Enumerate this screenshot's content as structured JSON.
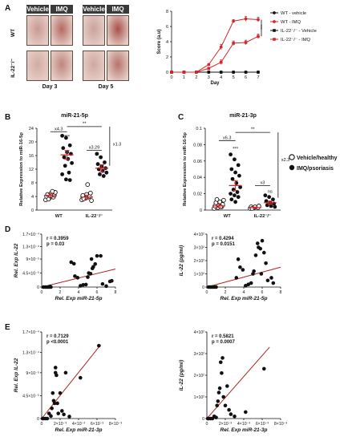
{
  "panel_labels": {
    "a": "A",
    "b": "B",
    "c": "C",
    "d": "D",
    "e": "E"
  },
  "photos": {
    "col_headers": [
      "Vehicle",
      "IMQ",
      "Vehicle",
      "IMQ"
    ],
    "row_labels": [
      "WT",
      "IL-22⁻/⁻"
    ],
    "day_labels": [
      "Day 3",
      "Day 5"
    ],
    "tiles": [
      {
        "row": 0,
        "col": 0,
        "tone": "#c89a92"
      },
      {
        "row": 0,
        "col": 1,
        "tone": "#b36a62"
      },
      {
        "row": 0,
        "col": 2,
        "tone": "#caa39c"
      },
      {
        "row": 0,
        "col": 3,
        "tone": "#a9504a"
      },
      {
        "row": 1,
        "col": 0,
        "tone": "#d2aba2"
      },
      {
        "row": 1,
        "col": 1,
        "tone": "#bf857d"
      },
      {
        "row": 1,
        "col": 2,
        "tone": "#d0a8a0"
      },
      {
        "row": 1,
        "col": 3,
        "tone": "#b5736b"
      }
    ]
  },
  "chart_data": [
    {
      "id": "A",
      "type": "line",
      "xlabel": "Day",
      "ylabel": "Score (a.u)",
      "x": [
        0,
        1,
        2,
        3,
        4,
        5,
        6,
        7
      ],
      "xlim": [
        0,
        7
      ],
      "ylim": [
        0,
        8
      ],
      "yticks": [
        0,
        2,
        4,
        6,
        8
      ],
      "series": [
        {
          "name": "WT - vehicle",
          "color": "#111111",
          "marker": "circle-filled",
          "values": [
            0,
            0,
            0,
            0,
            0,
            0,
            0,
            0
          ],
          "err": [
            0,
            0,
            0,
            0,
            0,
            0,
            0,
            0
          ]
        },
        {
          "name": "WT - IMQ",
          "color": "#d62728",
          "marker": "circle-filled",
          "values": [
            0,
            0,
            0,
            1,
            3.3,
            6.7,
            7,
            6.9
          ],
          "err": [
            0,
            0,
            0,
            0.1,
            0.35,
            0.2,
            0.3,
            0.3
          ]
        },
        {
          "name": "IL-22⁻/⁻ - Vehicle",
          "color": "#111111",
          "marker": "square-filled",
          "values": [
            0,
            0,
            0,
            0,
            0,
            0,
            0,
            0
          ],
          "err": [
            0,
            0,
            0,
            0,
            0,
            0,
            0,
            0
          ]
        },
        {
          "name": "IL-22⁻/⁻ - IMQ",
          "color": "#d62728",
          "marker": "square-filled",
          "values": [
            0,
            0,
            0,
            0.5,
            1.3,
            3.8,
            3.9,
            4.7
          ],
          "err": [
            0,
            0,
            0,
            0.1,
            0.3,
            0.3,
            0.3,
            0.3
          ]
        }
      ],
      "annotations": [
        "***"
      ]
    },
    {
      "id": "B",
      "type": "scatter",
      "title": "miR-21-5p",
      "ylabel": "Relative Expression to miR-16-5p",
      "categories": [
        "WT",
        "IL-22⁻/⁻"
      ],
      "ylim": [
        0,
        24
      ],
      "yticks": [
        0,
        4,
        8,
        12,
        16,
        20,
        24
      ],
      "groups": [
        {
          "category": "WT",
          "kind": "vehicle",
          "mean": 4.3,
          "sem": 0.5,
          "values": [
            3,
            3.5,
            3.8,
            4,
            4.2,
            4.4,
            4.6,
            5,
            5.2,
            3.2,
            5.5
          ]
        },
        {
          "category": "WT",
          "kind": "imq",
          "mean": 16.2,
          "sem": 1.3,
          "values": [
            21.8,
            21.2,
            19,
            18.2,
            17,
            16.5,
            15.5,
            15,
            13.8,
            13,
            11,
            10.5,
            9,
            8.8
          ]
        },
        {
          "category": "IL-22⁻/⁻",
          "kind": "vehicle",
          "mean": 3.8,
          "sem": 0.6,
          "values": [
            3,
            3.5,
            4,
            4.3,
            4.6,
            5,
            3.3,
            7.5,
            2.8
          ]
        },
        {
          "category": "IL-22⁻/⁻",
          "kind": "imq",
          "mean": 12.3,
          "sem": 1,
          "values": [
            16.5,
            15.5,
            14,
            13.5,
            12.8,
            12.3,
            12,
            11.5,
            11,
            10.5,
            10
          ]
        }
      ],
      "annotations": [
        "x4.3",
        "***",
        "**",
        "x3.29",
        "x1.3"
      ]
    },
    {
      "id": "C",
      "type": "scatter",
      "title": "miR-21-3p",
      "ylabel": "Relative Expression to miR-16-5p",
      "categories": [
        "WT",
        "IL-22⁻/⁻"
      ],
      "ylim": [
        0,
        0.1
      ],
      "yticks": [
        0,
        0.02,
        0.04,
        0.06,
        0.08,
        0.1
      ],
      "groups": [
        {
          "category": "WT",
          "kind": "vehicle",
          "mean": 0.005,
          "sem": 0.002,
          "values": [
            0.002,
            0.003,
            0.004,
            0.005,
            0.006,
            0.007,
            0.009,
            0.01,
            0.012,
            0.013,
            0.004
          ]
        },
        {
          "category": "WT",
          "kind": "imq",
          "mean": 0.03,
          "sem": 0.006,
          "values": [
            0.068,
            0.062,
            0.055,
            0.05,
            0.046,
            0.042,
            0.038,
            0.033,
            0.028,
            0.025,
            0.022,
            0.02,
            0.018,
            0.016,
            0.013,
            0.01
          ]
        },
        {
          "category": "IL-22⁻/⁻",
          "kind": "vehicle",
          "mean": 0.003,
          "sem": 0.0008,
          "values": [
            0.002,
            0.003,
            0.003,
            0.004,
            0.004,
            0.005,
            0.002
          ]
        },
        {
          "category": "IL-22⁻/⁻",
          "kind": "imq",
          "mean": 0.009,
          "sem": 0.002,
          "values": [
            0.018,
            0.016,
            0.013,
            0.011,
            0.009,
            0.008,
            0.006,
            0.005,
            0.004
          ]
        }
      ],
      "annotations": [
        "x6.3",
        "***",
        "**",
        "x3",
        "ns",
        "x2.3"
      ]
    },
    {
      "id": "D1",
      "type": "scatter",
      "xlabel": "Rel. Exp miR-21-5p",
      "ylabel": "Rel. Exp IL-22",
      "xlim": [
        0,
        8
      ],
      "ylim": [
        0,
        0.00017
      ],
      "xticks": [
        0,
        2,
        4,
        6,
        8
      ],
      "yticks": [
        0,
        4.5e-05,
        9e-05,
        0.00013,
        0.00017
      ],
      "ytick_labels": [
        "0",
        "4.5×10⁻⁵",
        "9×10⁻⁵",
        "1.3×10⁻⁴",
        "1.7×10⁻⁴"
      ],
      "stats": [
        "r = 0.3959",
        "p = 0.03"
      ],
      "points": [
        [
          0.2,
          0
        ],
        [
          0.4,
          0
        ],
        [
          0.6,
          0
        ],
        [
          0.8,
          0
        ],
        [
          1,
          0
        ],
        [
          0.9,
          2e-06
        ],
        [
          3.2,
          8e-05
        ],
        [
          3.5,
          7.5e-05
        ],
        [
          3.6,
          3.5e-05
        ],
        [
          3.9,
          3e-05
        ],
        [
          4.5,
          7e-06
        ],
        [
          4.8,
          8e-06
        ],
        [
          5,
          3.2e-05
        ],
        [
          5.1,
          4.5e-05
        ],
        [
          5.3,
          4.3e-05
        ],
        [
          5.5,
          6e-05
        ],
        [
          5.6,
          6.5e-05
        ],
        [
          5.8,
          7.4e-05
        ],
        [
          6,
          0.0001
        ],
        [
          6.4,
          0.0001
        ],
        [
          6.6,
          1e-05
        ],
        [
          7,
          3e-06
        ],
        [
          7.4,
          1.8e-05
        ],
        [
          7.6,
          2e-05
        ],
        [
          5.4,
          9e-05
        ],
        [
          4.2,
          4e-06
        ]
      ],
      "fit": [
        [
          0,
          0
        ],
        [
          8,
          5.8e-05
        ]
      ]
    },
    {
      "id": "D2",
      "type": "scatter",
      "xlabel": "Rel. Exp miR-21-5p",
      "ylabel": "IL-22 (pg/ml)",
      "xlim": [
        0,
        8
      ],
      "ylim": [
        0,
        400
      ],
      "xticks": [
        0,
        2,
        4,
        6,
        8
      ],
      "yticks": [
        0,
        100,
        200,
        300,
        400
      ],
      "ytick_labels": [
        "0",
        "1×10²",
        "2×10²",
        "3×10²",
        "4×10²"
      ],
      "stats": [
        "r = 0.4294",
        "p = 0.0151"
      ],
      "points": [
        [
          0.2,
          0
        ],
        [
          0.4,
          0
        ],
        [
          0.6,
          0
        ],
        [
          0.8,
          0
        ],
        [
          1,
          0
        ],
        [
          3.2,
          70
        ],
        [
          3.4,
          210
        ],
        [
          3.6,
          150
        ],
        [
          3.9,
          130
        ],
        [
          4.5,
          20
        ],
        [
          4.8,
          30
        ],
        [
          5,
          100
        ],
        [
          5.1,
          120
        ],
        [
          5.3,
          240
        ],
        [
          5.5,
          330
        ],
        [
          5.6,
          300
        ],
        [
          5.8,
          290
        ],
        [
          6,
          350
        ],
        [
          6.2,
          260
        ],
        [
          6.4,
          180
        ],
        [
          6.6,
          50
        ],
        [
          7,
          70
        ],
        [
          7.2,
          30
        ],
        [
          5.9,
          100
        ],
        [
          4.2,
          10
        ]
      ],
      "fit": [
        [
          0,
          0
        ],
        [
          8,
          150
        ]
      ]
    },
    {
      "id": "E1",
      "type": "scatter",
      "xlabel": "Rel. Exp miR-21-3p",
      "ylabel": "Rel. Exp IL-22",
      "xlim": [
        0,
        0.008
      ],
      "ylim": [
        0,
        0.00017
      ],
      "xticks": [
        0,
        0.002,
        0.004,
        0.006,
        0.008
      ],
      "xtick_labels": [
        "0",
        "2×10⁻³",
        "4×10⁻³",
        "6×10⁻³",
        "8×10⁻³"
      ],
      "yticks": [
        0,
        4.5e-05,
        9e-05,
        0.00013,
        0.00017
      ],
      "ytick_labels": [
        "0",
        "4.5×10⁻⁵",
        "9×10⁻⁵",
        "1.3×10⁻⁴",
        "1.7×10⁻⁴"
      ],
      "stats": [
        "r = 0.7129",
        "p <0.0001"
      ],
      "points": [
        [
          0.0001,
          0
        ],
        [
          0.0002,
          0
        ],
        [
          0.0004,
          0
        ],
        [
          0.0006,
          0
        ],
        [
          0.0008,
          1e-05
        ],
        [
          0.001,
          5e-06
        ],
        [
          0.0011,
          2e-05
        ],
        [
          0.0012,
          5e-05
        ],
        [
          0.0013,
          3.5e-05
        ],
        [
          0.0014,
          3e-05
        ],
        [
          0.0015,
          9e-05
        ],
        [
          0.0016,
          8.5e-05
        ],
        [
          0.0017,
          3e-05
        ],
        [
          0.0018,
          1e-05
        ],
        [
          0.002,
          5e-05
        ],
        [
          0.0022,
          1.5e-05
        ],
        [
          0.0024,
          8e-06
        ],
        [
          0.0026,
          9e-05
        ],
        [
          0.003,
          4e-06
        ],
        [
          0.0042,
          8e-05
        ],
        [
          0.0062,
          0.000143
        ],
        [
          0.0015,
          0.0001
        ]
      ],
      "fit": [
        [
          0,
          0
        ],
        [
          0.0064,
          0.000145
        ]
      ]
    },
    {
      "id": "E2",
      "type": "scatter",
      "xlabel": "Rel. Exp miR-21-3p",
      "ylabel": "IL-22 (pg/ml)",
      "xlim": [
        0,
        0.008
      ],
      "ylim": [
        0,
        400
      ],
      "xticks": [
        0,
        0.002,
        0.004,
        0.006,
        0.008
      ],
      "xtick_labels": [
        "0",
        "2×10⁻³",
        "4×10⁻³",
        "6×10⁻³",
        "8×10⁻³"
      ],
      "yticks": [
        0,
        100,
        200,
        300,
        400
      ],
      "ytick_labels": [
        "0",
        "1×10²",
        "2×10²",
        "3×10²",
        "4×10²"
      ],
      "stats": [
        "r = 0.5821",
        "p = 0.0007"
      ],
      "points": [
        [
          0.0001,
          0
        ],
        [
          0.0002,
          0
        ],
        [
          0.0004,
          0
        ],
        [
          0.0006,
          0
        ],
        [
          0.0008,
          10
        ],
        [
          0.001,
          5
        ],
        [
          0.0011,
          60
        ],
        [
          0.0012,
          80
        ],
        [
          0.0013,
          120
        ],
        [
          0.0014,
          140
        ],
        [
          0.0015,
          260
        ],
        [
          0.0016,
          210
        ],
        [
          0.0017,
          280
        ],
        [
          0.0018,
          100
        ],
        [
          0.002,
          60
        ],
        [
          0.0022,
          150
        ],
        [
          0.0024,
          40
        ],
        [
          0.0026,
          20
        ],
        [
          0.003,
          10
        ],
        [
          0.0042,
          30
        ],
        [
          0.0062,
          230
        ]
      ],
      "fit": [
        [
          0,
          0
        ],
        [
          0.0068,
          330
        ]
      ]
    }
  ],
  "legend_bc": [
    {
      "marker": "circle-open",
      "label": "Vehicle/healthy"
    },
    {
      "marker": "circle-filled",
      "label": "IMQ/psoriasis"
    }
  ]
}
